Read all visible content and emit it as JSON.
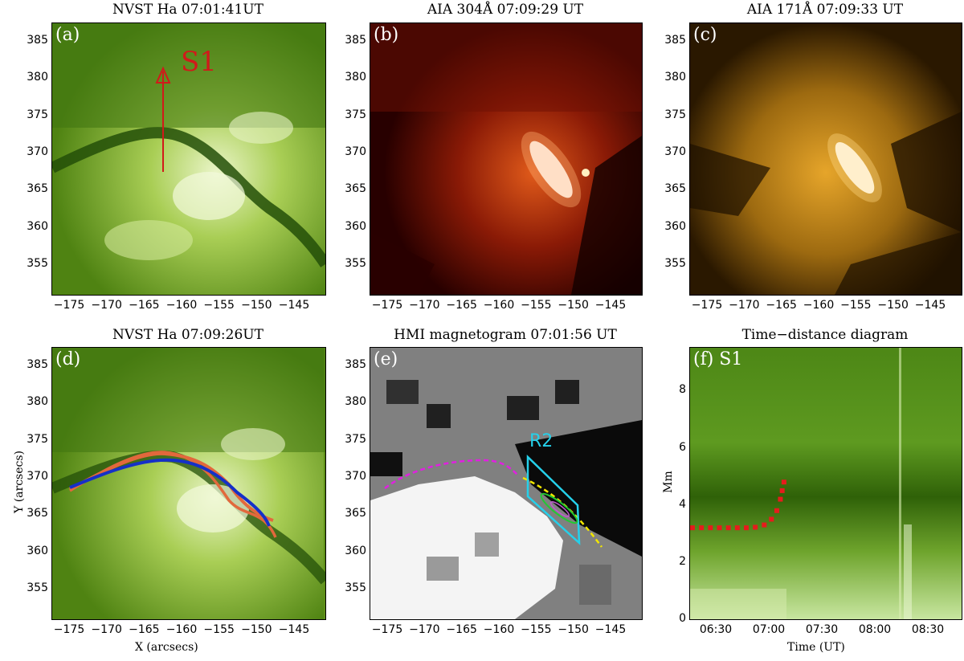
{
  "panels": {
    "a": {
      "title": "NVST Ha 07:01:41UT",
      "label": "(a)",
      "slit_label": "S1"
    },
    "b": {
      "title": "AIA 304Å 07:09:29 UT",
      "label": "(b)"
    },
    "c": {
      "title": "AIA 171Å 07:09:33 UT",
      "label": "(c)"
    },
    "d": {
      "title": "NVST Ha 07:09:26UT",
      "label": "(d)"
    },
    "e": {
      "title": "HMI magnetogram 07:01:56 UT",
      "label": "(e)",
      "region_label": "R2"
    },
    "f": {
      "title": "Time−distance diagram",
      "label": "(f) S1"
    }
  },
  "axes": {
    "x_ticks": [
      "−175",
      "−170",
      "−165",
      "−160",
      "−155",
      "−150",
      "−145"
    ],
    "y_ticks": [
      "385",
      "380",
      "375",
      "370",
      "365",
      "360",
      "355"
    ],
    "x_title": "X (arcsecs)",
    "y_title": "Y (arcsecs)",
    "f_x_ticks": [
      "06:30",
      "07:00",
      "07:30",
      "08:00",
      "08:30"
    ],
    "f_y_ticks": [
      "8",
      "6",
      "4",
      "2",
      "0"
    ],
    "f_x_title": "Time (UT)",
    "f_y_title": "Mm"
  },
  "colors": {
    "halpha": "#6f9e1e",
    "aia304": "#7a1206",
    "aia171": "#b78212",
    "red_arrow": "#d11a1a",
    "orange_curve": "#e2683c",
    "blue_curve": "#1530c8",
    "magenta_dash": "#e020e0",
    "yellow_dash": "#f2e600",
    "cyan_box": "#25d0ea"
  },
  "chart_data": {
    "type": "line",
    "title": "Time−distance diagram",
    "xlabel": "Time (UT)",
    "ylabel": "Mm",
    "x_tick_labels": [
      "06:30",
      "07:00",
      "07:30",
      "08:00",
      "08:30"
    ],
    "ylim": [
      0,
      9.5
    ],
    "series": [
      {
        "x_minutes_after_0620": [
          0,
          5,
          10,
          15,
          20,
          25,
          30,
          35,
          40,
          44,
          47,
          49,
          50,
          51
        ],
        "values": [
          3.2,
          3.2,
          3.2,
          3.2,
          3.2,
          3.2,
          3.2,
          3.22,
          3.3,
          3.5,
          3.8,
          4.2,
          4.5,
          4.8
        ]
      }
    ]
  }
}
